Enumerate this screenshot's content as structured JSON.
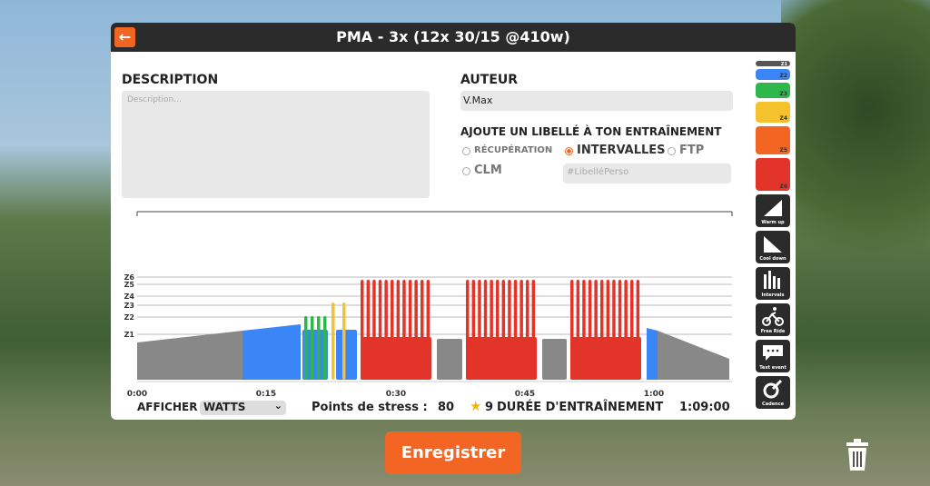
{
  "header": {
    "title": "PMA -  3x (12x 30/15 @410w)"
  },
  "description": {
    "label": "DESCRIPTION",
    "placeholder": "Description..."
  },
  "author": {
    "label": "AUTEUR",
    "value": "V.Max"
  },
  "tag": {
    "label": "AJOUTE UN LIBELLÉ À TON ENTRAÎNEMENT",
    "options": [
      "RÉCUPÉRATION",
      "INTERVALLES",
      "FTP",
      "CLM"
    ],
    "selected": "INTERVALLES",
    "custom_placeholder": "#LibelléPerso"
  },
  "zones": [
    "Z1",
    "Z2",
    "Z3",
    "Z4",
    "Z5",
    "Z6"
  ],
  "tools": [
    "Warm up",
    "Cool down",
    "Intervals",
    "Free Ride",
    "Text event",
    "Cadence"
  ],
  "timeline": {
    "ticks": [
      "0:00",
      "0:15",
      "0:30",
      "0:45",
      "1:00"
    ]
  },
  "footer": {
    "display_label": "AFFICHER",
    "display_value": "WATTS",
    "stress_label": "Points de stress :",
    "stress_value": 80,
    "level": 9,
    "duration_label": "DURÉE D'ENTRAÎNEMENT",
    "duration": "1:09:00"
  },
  "save_button": "Enregistrer"
}
